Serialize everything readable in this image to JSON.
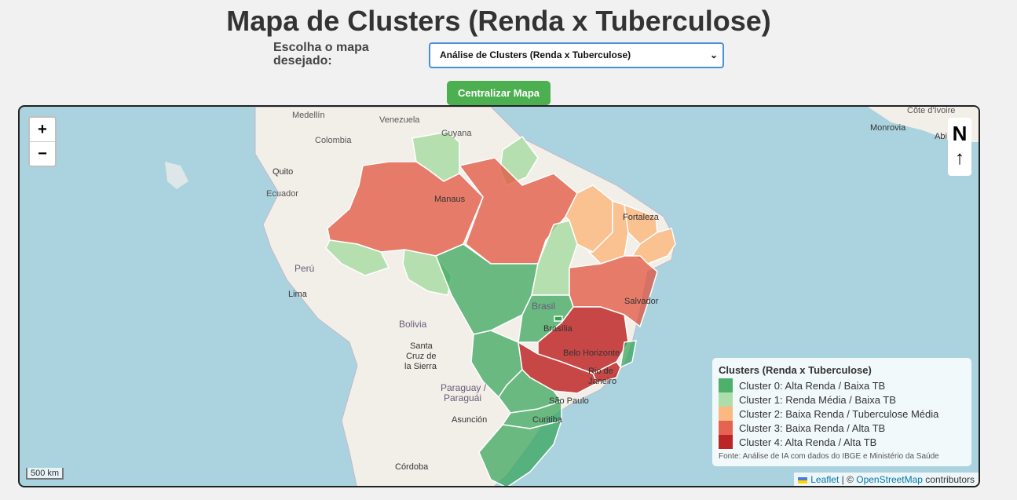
{
  "title": "Mapa de Clusters (Renda x Tuberculose)",
  "selector": {
    "label": "Escolha o mapa desejado:",
    "value": "Análise de Clusters (Renda x Tuberculose)"
  },
  "center_button": "Centralizar Mapa",
  "zoom": {
    "in": "+",
    "out": "−"
  },
  "north": {
    "letter": "N",
    "arrow": "↑"
  },
  "legend": {
    "title": "Clusters (Renda x Tuberculose)",
    "items": [
      {
        "label": "Cluster 0: Alta Renda / Baixa TB",
        "color": "#31a354"
      },
      {
        "label": "Cluster 1: Renda Média / Baixa TB",
        "color": "#a1d99b"
      },
      {
        "label": "Cluster 2: Baixa Renda / Tuberculose Média",
        "color": "#fdae6b"
      },
      {
        "label": "Cluster 3: Baixa Renda / Alta TB",
        "color": "#e34a33"
      },
      {
        "label": "Cluster 4: Alta Renda / Alta TB",
        "color": "#b30000"
      }
    ],
    "source": "Fonte: Análise de IA com dados do IBGE e Ministério da Saúde"
  },
  "scale": "500 km",
  "attribution": {
    "leaflet": "Leaflet",
    "sep": " | © ",
    "osm": "OpenStreetMap",
    "contrib": " contributors"
  },
  "places": {
    "medellin": "Medellín",
    "colombia": "Colombia",
    "venezuela": "Venezuela",
    "guyana": "Guyana",
    "quito": "Quito",
    "ecuador": "Ecuador",
    "manaus": "Manaus",
    "fortaleza": "Fortaleza",
    "peru": "Perú",
    "lima": "Lima",
    "brasil": "Brasil",
    "brasilia": "Brasília",
    "salvador": "Salvador",
    "bolivia": "Bolivia",
    "santa_cruz_1": "Santa",
    "santa_cruz_2": "Cruz de",
    "santa_cruz_3": "la Sierra",
    "belo_horizonte": "Belo Horizonte",
    "rio_1": "Rio de",
    "rio_2": "Janeiro",
    "paraguay_1": "Paraguay /",
    "paraguay_2": "Paraguái",
    "asuncion": "Asunción",
    "sao_paulo": "São Paulo",
    "curitiba": "Curitiba",
    "cordoba": "Córdoba",
    "cote_divoire": "Côte d'Ivoire",
    "monrovia": "Monrovia",
    "abidjan": "Abi"
  }
}
